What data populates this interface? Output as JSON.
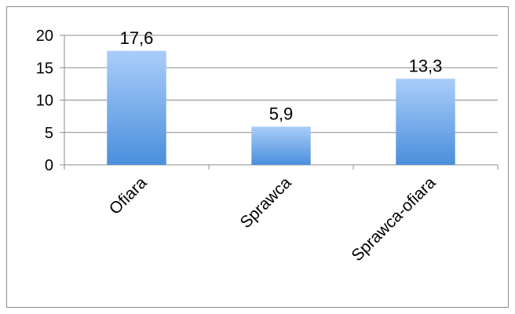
{
  "chart_data": {
    "type": "bar",
    "categories": [
      "Ofiara",
      "Sprawca",
      "Sprawca-ofiara"
    ],
    "values": [
      17.6,
      5.9,
      13.3
    ],
    "data_labels": [
      "17,6",
      "5,9",
      "13,3"
    ],
    "y_ticks": [
      "0",
      "5",
      "10",
      "15",
      "20"
    ],
    "ylim": [
      0,
      20
    ],
    "grid": true,
    "legend": "none",
    "colors": {
      "bar_top": "#aacdf9",
      "bar_bottom": "#4a8fdc",
      "gridline": "#8c8c8c",
      "axis": "#8c8c8c",
      "frame": "#8c8c8c"
    }
  }
}
